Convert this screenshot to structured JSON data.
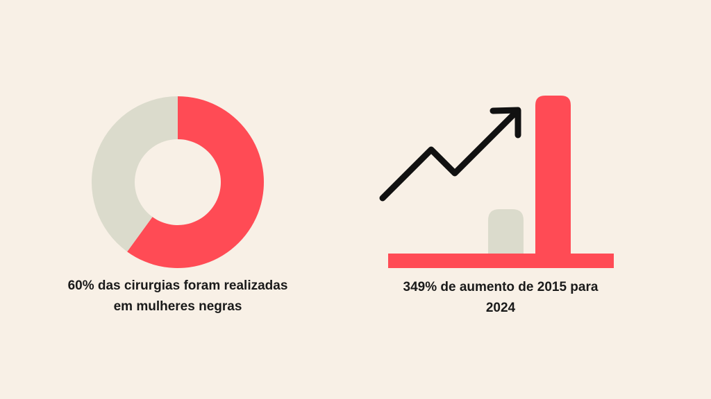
{
  "chart_data": {
    "type": "donut",
    "values": [
      60,
      40
    ],
    "colors": [
      "#ff4b55",
      "#dbdbcc"
    ],
    "caption": "60% das cirurgias foram realizadas em mulheres negras"
  },
  "infographic": {
    "caption": "349% de aumento de 2015 para 2024"
  }
}
